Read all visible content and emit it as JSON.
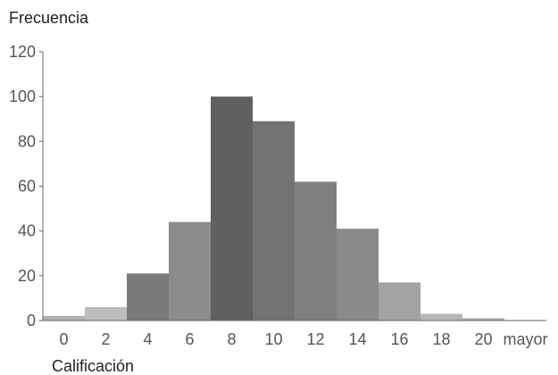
{
  "chart_data": {
    "type": "bar",
    "xlabel": "Calificación",
    "ylabel": "Frecuencia",
    "categories": [
      "0",
      "2",
      "4",
      "6",
      "8",
      "10",
      "12",
      "14",
      "16",
      "18",
      "20",
      "mayor"
    ],
    "values": [
      2,
      6,
      21,
      44,
      100,
      89,
      62,
      41,
      17,
      3,
      1,
      0
    ],
    "ylim": [
      0,
      120
    ],
    "yticks": [
      0,
      20,
      40,
      60,
      80,
      100,
      120
    ],
    "bar_colors": [
      "#b0b0b0",
      "#bdbdbd",
      "#7a7a7a",
      "#8c8c8c",
      "#5f5f5f",
      "#737373",
      "#7f7f7f",
      "#8a8a8a",
      "#a3a3a3",
      "#b6b6b6",
      "#a9a9a9",
      "#999999"
    ],
    "grid": false,
    "legend": "none"
  }
}
